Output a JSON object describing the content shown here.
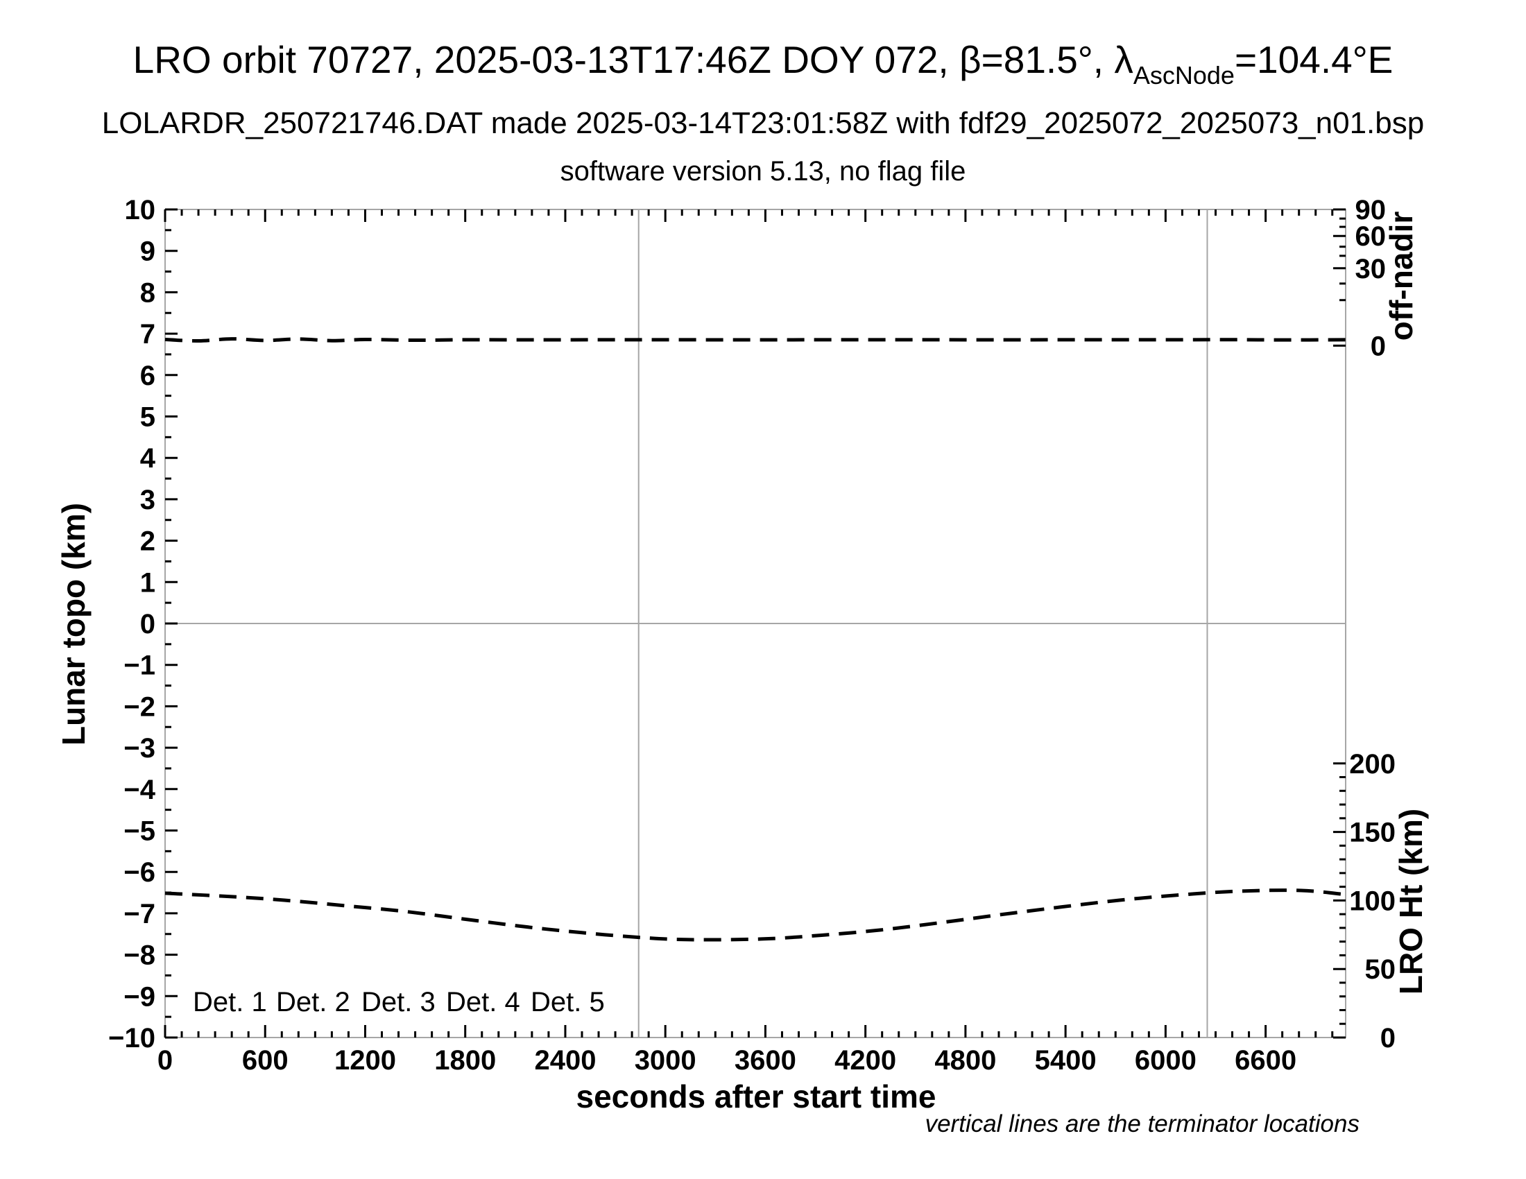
{
  "header": {
    "title_part1": "LRO orbit 70727, 2025-03-13T17:46Z DOY 072, β=81.5°, λ",
    "title_subscript": "AscNode",
    "title_part2": "=104.4°E",
    "subtitle": "LOLARDR_250721746.DAT made 2025-03-14T23:01:58Z with fdf29_2025072_2025073_n01.bsp",
    "version_line": "software version 5.13, no flag file"
  },
  "footnote": "vertical lines are the terminator locations",
  "legend": [
    {
      "label": "Det. 1",
      "color": "#000000"
    },
    {
      "label": "Det. 2",
      "color": "#0000ff"
    },
    {
      "label": "Det. 3",
      "color": "#00dd00"
    },
    {
      "label": "Det. 4",
      "color": "#ffa500"
    },
    {
      "label": "Det. 5",
      "color": "#ff0000"
    }
  ],
  "chart_data": {
    "type": "line",
    "title": "LRO orbit 70727, 2025-03-13T17:46Z DOY 072, β=81.5°, λAscNode=104.4°E",
    "xlabel": "seconds after start time",
    "x_range": [
      0,
      7080
    ],
    "x_major_tick_labels": [
      0,
      600,
      1200,
      1800,
      2400,
      3000,
      3600,
      4200,
      4800,
      5400,
      6000,
      6600
    ],
    "x_minor_step": 100,
    "grid": "off",
    "frame_color": "#a6a6a6",
    "y_left": {
      "label": "Lunar topo (km)",
      "range": [
        -10,
        10
      ],
      "major_step": 1,
      "minor_step": 0.5
    },
    "y_right_offnadir": {
      "label": "off-nadir",
      "labeled_ticks": [
        90,
        60,
        30,
        0
      ],
      "minor_ticks": [
        80,
        70,
        50,
        40,
        20,
        10
      ],
      "anchors_deg_topo": [
        [
          0,
          6.71
        ],
        [
          10,
          7.81
        ],
        [
          20,
          8.21
        ],
        [
          30,
          8.58
        ],
        [
          40,
          8.88
        ],
        [
          50,
          9.1
        ],
        [
          60,
          9.36
        ],
        [
          70,
          9.58
        ],
        [
          80,
          9.78
        ],
        [
          90,
          10.0
        ]
      ]
    },
    "y_right_height": {
      "label": "LRO Ht (km)",
      "range": [
        0,
        200
      ],
      "labeled_ticks": [
        200,
        150,
        100,
        50,
        0
      ],
      "minor_step": 10,
      "top_topo": -3.38
    },
    "zero_line_topo": 0,
    "terminator_lines_s": [
      2840,
      6250
    ],
    "series": [
      {
        "name": "spacecraft off-nadir angle (deg)",
        "axis": "offnadir",
        "style": "dashed",
        "color": "#000000",
        "points": [
          [
            0,
            1.35
          ],
          [
            200,
            1.05
          ],
          [
            400,
            1.5
          ],
          [
            600,
            1.15
          ],
          [
            800,
            1.45
          ],
          [
            1000,
            1.1
          ],
          [
            1200,
            1.35
          ],
          [
            1500,
            1.2
          ],
          [
            1800,
            1.3
          ],
          [
            2200,
            1.28
          ],
          [
            2600,
            1.3
          ],
          [
            3000,
            1.3
          ],
          [
            3500,
            1.28
          ],
          [
            4000,
            1.3
          ],
          [
            4500,
            1.3
          ],
          [
            5000,
            1.28
          ],
          [
            5500,
            1.3
          ],
          [
            6000,
            1.3
          ],
          [
            6400,
            1.32
          ],
          [
            6700,
            1.26
          ],
          [
            7080,
            1.3
          ]
        ]
      },
      {
        "name": "LRO height above surface (km)",
        "axis": "height",
        "style": "dashed",
        "color": "#000000",
        "points": [
          [
            0,
            105.3
          ],
          [
            400,
            102.8
          ],
          [
            715,
            100.2
          ],
          [
            1070,
            96.3
          ],
          [
            1431,
            92.1
          ],
          [
            1790,
            86.5
          ],
          [
            2146,
            81.0
          ],
          [
            2500,
            76.5
          ],
          [
            2862,
            72.9
          ],
          [
            3150,
            71.4
          ],
          [
            3577,
            71.9
          ],
          [
            3930,
            74.6
          ],
          [
            4293,
            78.5
          ],
          [
            4650,
            83.8
          ],
          [
            5008,
            89.6
          ],
          [
            5370,
            95.2
          ],
          [
            5724,
            100.2
          ],
          [
            6080,
            104.0
          ],
          [
            6440,
            106.8
          ],
          [
            6814,
            107.3
          ],
          [
            7080,
            104.3
          ]
        ]
      }
    ]
  }
}
